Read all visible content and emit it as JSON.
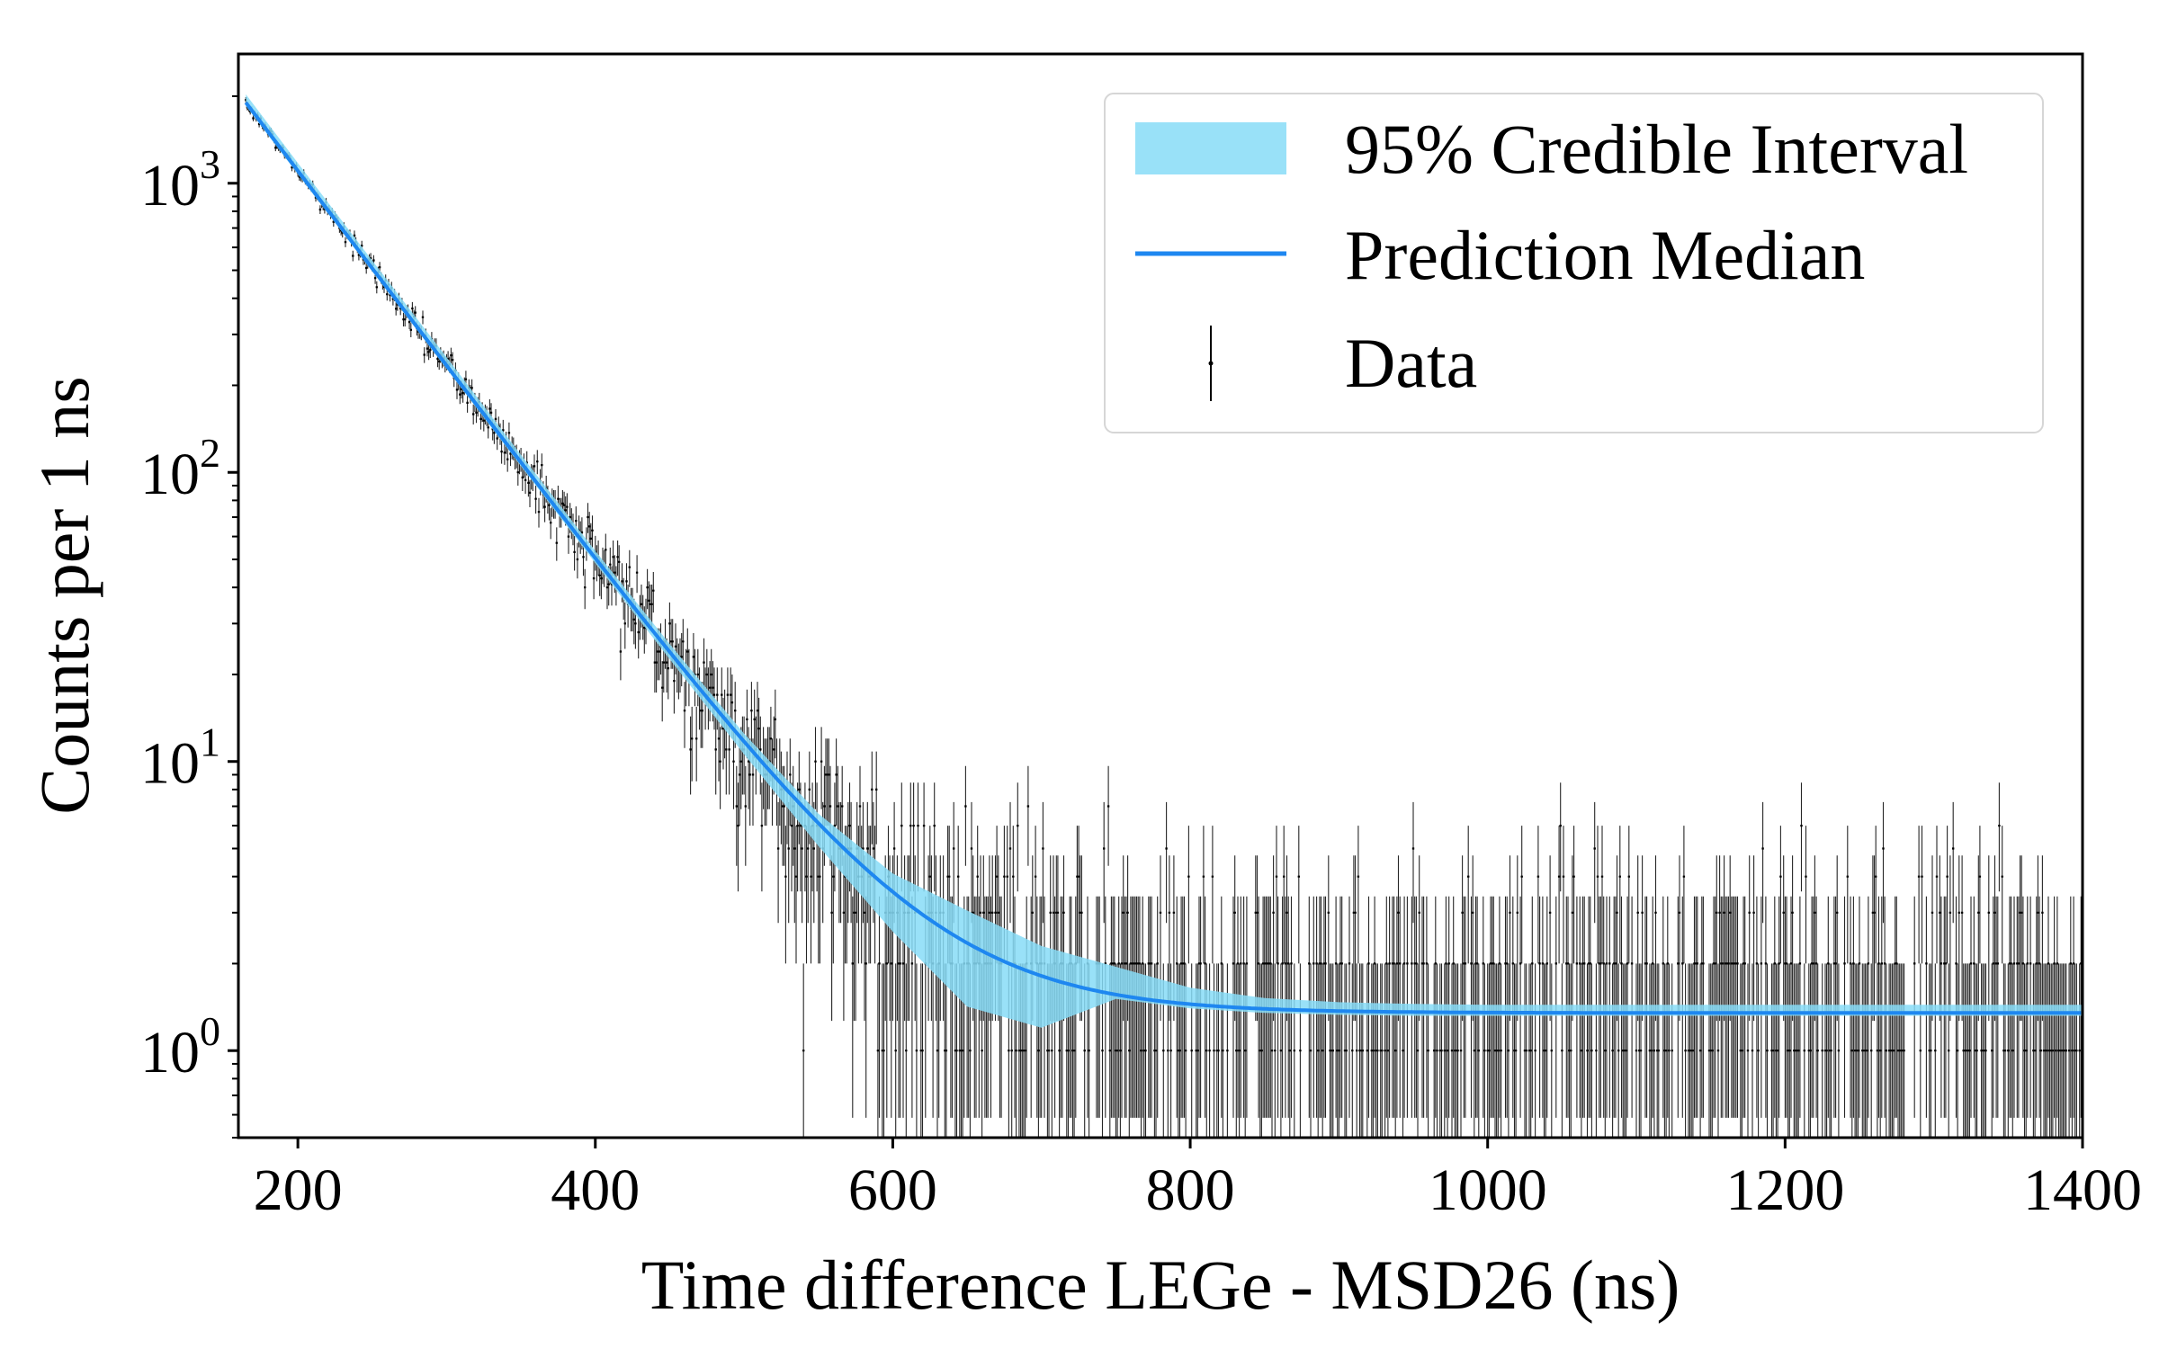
{
  "chart_data": {
    "type": "scatter",
    "title": "",
    "xlabel": "Time difference LEGe - MSD26 (ns)",
    "ylabel": "Counts per 1 ns",
    "xlim": [
      160,
      1400
    ],
    "ylim": [
      0.5,
      2800
    ],
    "yscale": "log",
    "grid": false,
    "legend_position": "top-right",
    "x_ticks": [
      {
        "value": 200,
        "label": "200"
      },
      {
        "value": 400,
        "label": "400"
      },
      {
        "value": 600,
        "label": "600"
      },
      {
        "value": 800,
        "label": "800"
      },
      {
        "value": 1000,
        "label": "1000"
      },
      {
        "value": 1200,
        "label": "1200"
      },
      {
        "value": 1400,
        "label": "1400"
      }
    ],
    "y_ticks": [
      {
        "value": 1,
        "base": "10",
        "exp": "0"
      },
      {
        "value": 10,
        "base": "10",
        "exp": "1"
      },
      {
        "value": 100,
        "base": "10",
        "exp": "2"
      },
      {
        "value": 1000,
        "base": "10",
        "exp": "3"
      }
    ],
    "legend": [
      {
        "label": "95% Credible Interval",
        "kind": "band"
      },
      {
        "label": "Prediction Median",
        "kind": "line"
      },
      {
        "label": "Data",
        "kind": "errorbar"
      }
    ],
    "model": {
      "amplitude": 1900,
      "x0": 165,
      "decay_ns": 64.3,
      "background": 1.35,
      "band_fraction_low": 0.025,
      "band_fraction_high": 0.07
    },
    "series": [
      {
        "name": "95% Credible Interval",
        "kind": "band",
        "color": "#87dcf7",
        "x": [
          165,
          200,
          250,
          300,
          350,
          400,
          450,
          500,
          550,
          600,
          650,
          700,
          750,
          800,
          850,
          900,
          950,
          1000,
          1050,
          1100,
          1150,
          1200,
          1250,
          1300,
          1350,
          1400
        ],
        "y_low": [
          1850,
          1075,
          495,
          228,
          105,
          48.5,
          22.6,
          10.6,
          5.1,
          2.58,
          1.42,
          0.87,
          1.51,
          1.4,
          1.35,
          1.33,
          1.32,
          1.32,
          1.32,
          1.32,
          1.32,
          1.32,
          1.32,
          1.32,
          1.32,
          1.32
        ],
        "y_high": [
          2030,
          1175,
          540,
          250,
          115,
          53.5,
          25.5,
          12.5,
          6.6,
          4.1,
          3.05,
          2.3,
          1.95,
          1.65,
          1.52,
          1.47,
          1.45,
          1.44,
          1.44,
          1.44,
          1.44,
          1.44,
          1.44,
          1.44,
          1.44,
          1.44
        ]
      },
      {
        "name": "Prediction Median",
        "kind": "line",
        "color": "#1e87f0",
        "x": [
          165,
          200,
          250,
          300,
          350,
          400,
          450,
          500,
          550,
          600,
          650,
          700,
          750,
          800,
          850,
          900,
          950,
          1000,
          1050,
          1100,
          1150,
          1200,
          1250,
          1300,
          1350,
          1400
        ],
        "y": [
          1900,
          1105,
          508,
          235,
          108,
          50.5,
          24.0,
          11.6,
          5.9,
          3.2,
          2.05,
          1.6,
          1.43,
          1.38,
          1.36,
          1.35,
          1.35,
          1.35,
          1.35,
          1.35,
          1.35,
          1.35,
          1.35,
          1.35,
          1.35,
          1.35
        ]
      },
      {
        "name": "Data",
        "kind": "errorbar",
        "color": "#000000",
        "x_range": [
          165,
          1400
        ],
        "bin_width_ns": 1,
        "x": [
          165,
          200,
          250,
          300,
          350,
          400,
          450,
          500,
          550,
          600,
          650,
          700,
          750,
          800,
          850,
          900,
          950,
          1000,
          1100,
          1200,
          1300,
          1400
        ],
        "y": [
          1850,
          1100,
          500,
          240,
          105,
          52,
          25,
          12,
          6,
          3,
          2,
          2,
          1,
          1,
          2,
          1,
          2,
          1,
          1,
          1,
          2,
          1
        ]
      }
    ]
  }
}
